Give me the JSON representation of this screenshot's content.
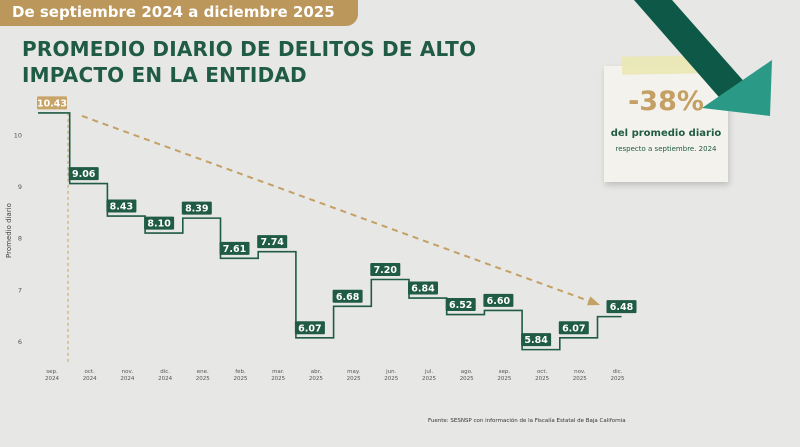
{
  "period": "De septiembre 2024 a diciembre 2025",
  "title": {
    "line1": "PROMEDIO DIARIO DE DELITOS DE ALTO",
    "line2": "IMPACTO EN LA ENTIDAD"
  },
  "card": {
    "value": "-38%",
    "line1": "del promedio diario",
    "line2": "respecto a septiembre. 2024"
  },
  "source": "Fuente: SESNSP con información de la Fiscalía Estatal de Baja California",
  "colors": {
    "step_line": "#1f5b45",
    "label_box": "#1f5b45",
    "first_label_box": "#c8a467",
    "trend_line": "#c4a064",
    "arrow": "#0e5848",
    "arrow_head": "#2a9985"
  },
  "icons": [
    "down-trend-arrow-icon"
  ],
  "chart_data": {
    "type": "line",
    "style": "step",
    "ylabel": "Promedio diario",
    "xlabel": "",
    "ylim": [
      5.6,
      10.7
    ],
    "yticks": [
      6,
      7,
      8,
      9,
      10
    ],
    "categories": [
      [
        "sep.",
        "2024"
      ],
      [
        "oct.",
        "2024"
      ],
      [
        "nov.",
        "2024"
      ],
      [
        "dic.",
        "2024"
      ],
      [
        "ene.",
        "2025"
      ],
      [
        "feb.",
        "2025"
      ],
      [
        "mar.",
        "2025"
      ],
      [
        "abr.",
        "2025"
      ],
      [
        "may.",
        "2025"
      ],
      [
        "jun.",
        "2025"
      ],
      [
        "jul.",
        "2025"
      ],
      [
        "ago.",
        "2025"
      ],
      [
        "sep.",
        "2025"
      ],
      [
        "oct.",
        "2025"
      ],
      [
        "nov.",
        "2025"
      ],
      [
        "dic.",
        "2025"
      ]
    ],
    "values": [
      10.43,
      9.06,
      8.43,
      8.1,
      8.39,
      7.61,
      7.74,
      6.07,
      6.68,
      7.2,
      6.84,
      6.52,
      6.6,
      5.84,
      6.07,
      6.48
    ],
    "labels": [
      "10.43",
      "9.06",
      "8.43",
      "8.10",
      "8.39",
      "7.61",
      "7.74",
      "6.07",
      "6.68",
      "7.20",
      "6.84",
      "6.52",
      "6.60",
      "5.84",
      "6.07",
      "6.48"
    ],
    "trend": {
      "from_index": 0,
      "to_index": 15
    },
    "grid": false,
    "legend": "none"
  }
}
